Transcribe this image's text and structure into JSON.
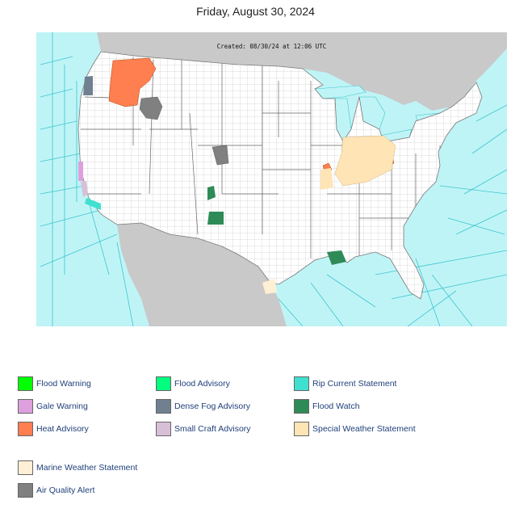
{
  "page_title": "Friday, August 30, 2024",
  "map": {
    "created_stamp": "Created: 08/30/24 at 12:06 UTC",
    "colors": {
      "ocean": "#bff4f6",
      "marine_zone_lines": "#3cc6cf",
      "land": "#ffffff",
      "foreign_land": "#c9c9c9",
      "county_lines": "#b8b8b8"
    }
  },
  "legend": [
    {
      "label": "Flood Warning",
      "color": "#00ff00"
    },
    {
      "label": "Flood Advisory",
      "color": "#00ff7f"
    },
    {
      "label": "Rip Current Statement",
      "color": "#40e0d0"
    },
    {
      "label": "Gale Warning",
      "color": "#dda0dd"
    },
    {
      "label": "Dense Fog Advisory",
      "color": "#708090"
    },
    {
      "label": "Flood Watch",
      "color": "#2e8b57"
    },
    {
      "label": "Heat Advisory",
      "color": "#ff7f50"
    },
    {
      "label": "Small Craft Advisory",
      "color": "#d8bfd8"
    },
    {
      "label": "Special Weather Statement",
      "color": "#ffe4b5"
    },
    {
      "label": "Marine Weather Statement",
      "color": "#ffefd5"
    },
    {
      "label": "Air Quality Alert",
      "color": "#808080"
    }
  ]
}
